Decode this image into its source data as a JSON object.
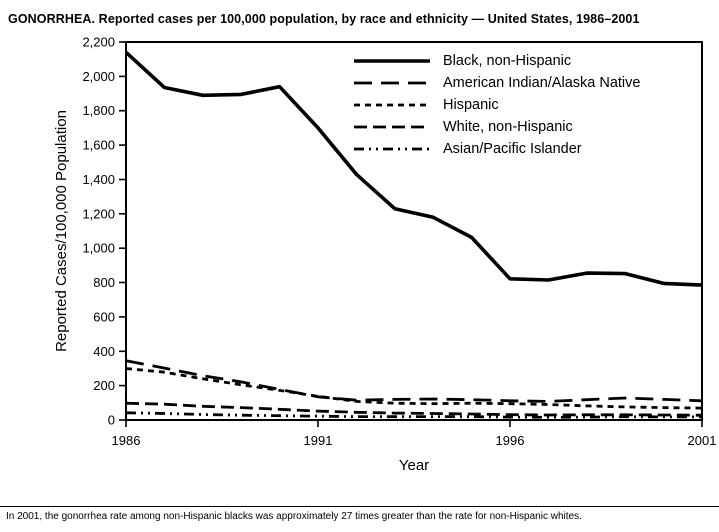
{
  "page": {
    "title": "GONORRHEA. Reported cases per 100,000 population, by race and ethnicity — United States, 1986–2001",
    "footnote": "In 2001, the gonorrhea rate among non-Hispanic blacks was approximately 27 times greater than the rate for non-Hispanic whites."
  },
  "chart_data": {
    "type": "line",
    "title": "GONORRHEA. Reported cases per 100,000 population, by race and ethnicity — United States, 1986–2001",
    "xlabel": "Year",
    "ylabel": "Reported Cases/100,000 Population",
    "x": [
      1986,
      1987,
      1988,
      1989,
      1990,
      1991,
      1992,
      1993,
      1994,
      1995,
      1996,
      1997,
      1998,
      1999,
      2000,
      2001
    ],
    "x_ticks": [
      1986,
      1991,
      1996,
      2001
    ],
    "ylim": [
      0,
      2200
    ],
    "y_tick_step": 200,
    "grid": false,
    "legend_position": "inside-top-right",
    "line_color": "#000000",
    "series": [
      {
        "name": "Black, non-Hispanic",
        "dash": "solid",
        "width": 3.6,
        "values": [
          2140,
          1935,
          1890,
          1895,
          1940,
          1700,
          1430,
          1230,
          1180,
          1063,
          822,
          815,
          855,
          852,
          795,
          785
        ]
      },
      {
        "name": "American Indian/Alaska Native",
        "dash": "18,9",
        "width": 2.8,
        "values": [
          345,
          302,
          258,
          222,
          178,
          135,
          115,
          120,
          122,
          118,
          112,
          108,
          118,
          128,
          120,
          112
        ]
      },
      {
        "name": "Hispanic",
        "dash": "6,5",
        "width": 2.8,
        "values": [
          300,
          278,
          240,
          205,
          172,
          138,
          108,
          98,
          95,
          98,
          95,
          90,
          82,
          76,
          72,
          69
        ]
      },
      {
        "name": "White, non-Hispanic",
        "dash": "13,6",
        "width": 2.8,
        "values": [
          98,
          92,
          80,
          72,
          62,
          52,
          45,
          40,
          38,
          35,
          31,
          29,
          30,
          30,
          29,
          28
        ]
      },
      {
        "name": "Asian/Pacific Islander",
        "dash": "10,5,2,5,2,5",
        "width": 2.8,
        "values": [
          42,
          38,
          32,
          28,
          25,
          22,
          20,
          19,
          20,
          19,
          17,
          16,
          17,
          19,
          18,
          18
        ]
      }
    ]
  }
}
